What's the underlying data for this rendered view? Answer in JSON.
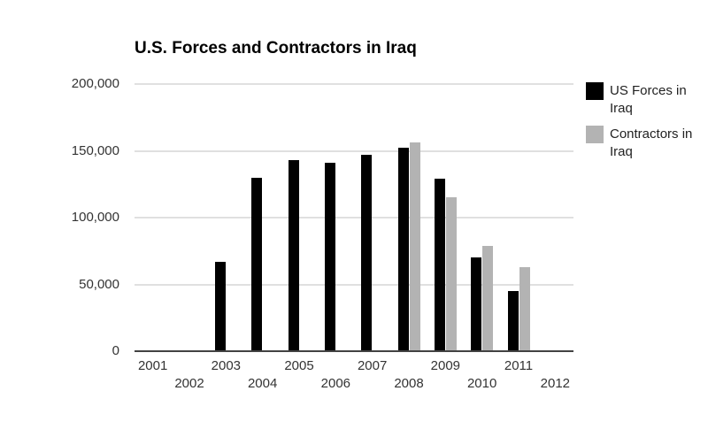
{
  "chart_data": {
    "type": "bar",
    "title": "U.S. Forces and Contractors in Iraq",
    "categories": [
      "2001",
      "2002",
      "2003",
      "2004",
      "2005",
      "2006",
      "2007",
      "2008",
      "2009",
      "2010",
      "2011",
      "2012"
    ],
    "series": [
      {
        "name": "US Forces in Iraq",
        "color": "#000000",
        "values": [
          null,
          null,
          67000,
          130000,
          143000,
          141000,
          147000,
          152000,
          129000,
          70000,
          45000,
          null
        ]
      },
      {
        "name": "Contractors in Iraq",
        "color": "#b3b3b3",
        "values": [
          null,
          null,
          null,
          null,
          null,
          null,
          null,
          156000,
          115000,
          79000,
          63000,
          null
        ]
      }
    ],
    "xlabel": "",
    "ylabel": "",
    "ylim": [
      0,
      200000
    ],
    "yticks": [
      0,
      50000,
      100000,
      150000,
      200000
    ],
    "ytick_labels": [
      "0",
      "50,000",
      "100,000",
      "150,000",
      "200,000"
    ],
    "grid": true,
    "legend_position": "right",
    "x_label_layout": "staggered-two-rows"
  },
  "colors": {
    "background": "#ffffff",
    "gridline": "#e0e0e0",
    "axis_line": "#424242",
    "label_text": "#333333"
  }
}
